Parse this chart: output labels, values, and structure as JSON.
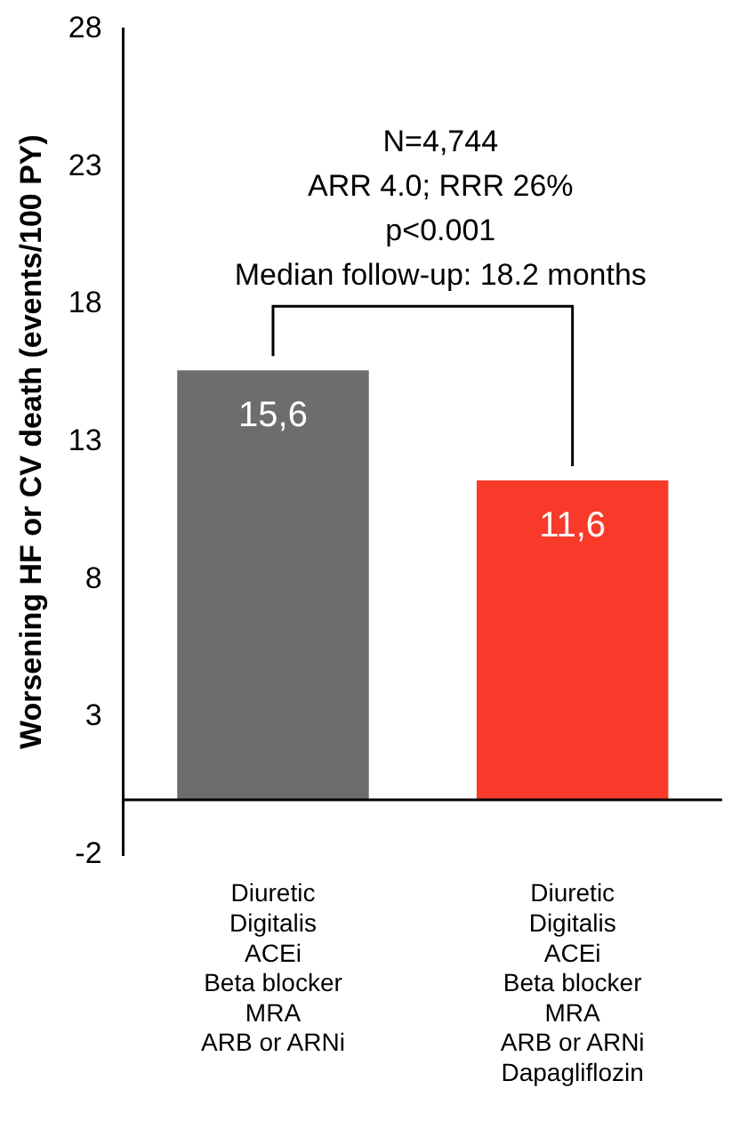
{
  "chart_data": {
    "type": "bar",
    "ylabel": "Worsening HF or CV death (events/100 PY)",
    "categories": [
      "Diuretic\nDigitalis\nACEi\nBeta blocker\nMRA\nARB or ARNi",
      "Diuretic\nDigitalis\nACEi\nBeta blocker\nMRA\nARB or ARNi\nDapagliflozin"
    ],
    "values": [
      15.6,
      11.6
    ],
    "colors": [
      "#6d6d6d",
      "#f93a2a"
    ],
    "value_labels": [
      "15,6",
      "11,6"
    ],
    "ylim": [
      -2,
      28
    ],
    "yticks": [
      -2,
      3,
      8,
      13,
      18,
      23,
      28
    ],
    "grid": false,
    "legend": false,
    "annotations": [
      "N=4,744",
      "ARR 4.0; RRR 26%",
      "p<0.001",
      "Median follow-up: 18.2 months"
    ]
  }
}
